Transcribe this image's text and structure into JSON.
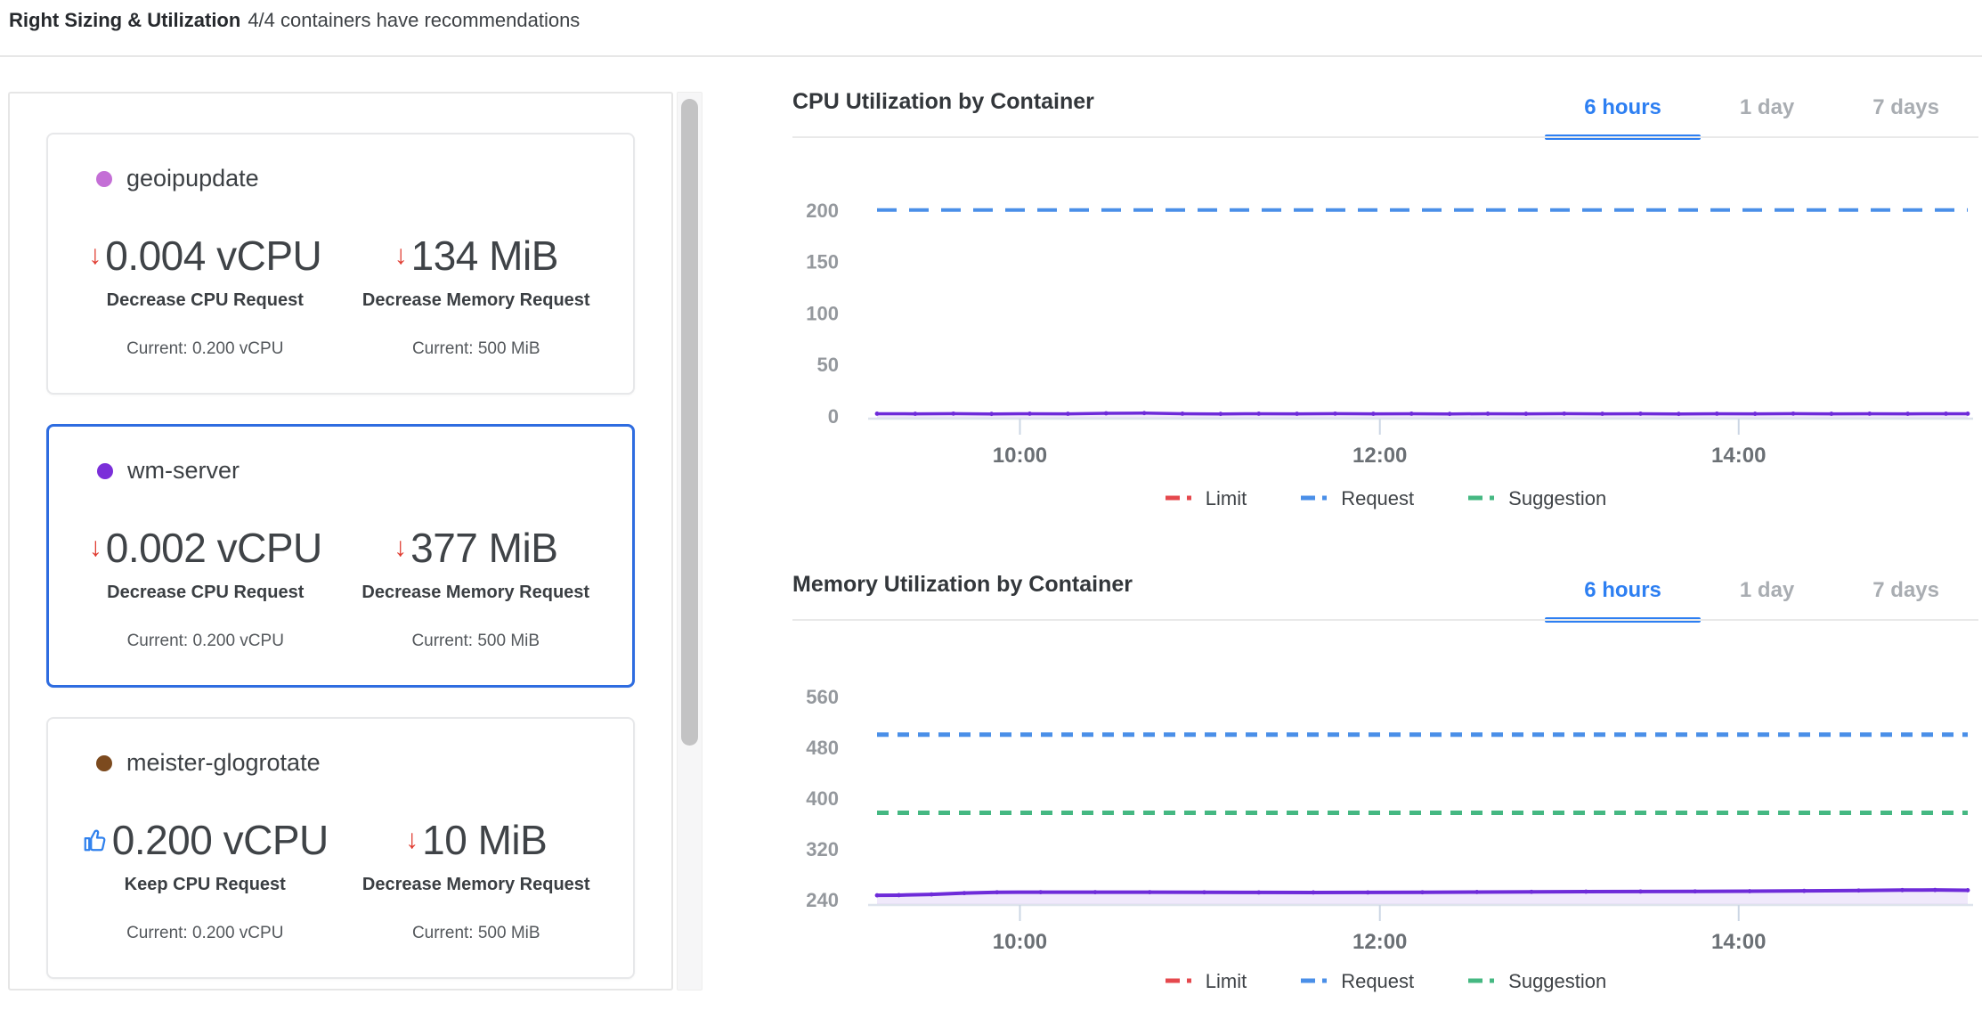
{
  "header": {
    "title": "Right Sizing & Utilization",
    "subtitle": "4/4 containers have recommendations"
  },
  "panel": {
    "containers": [
      {
        "name": "geoipupdate",
        "dot_color": "#c46fd6",
        "selected": false,
        "cpu": {
          "icon": "decrease",
          "value": "0.004 vCPU",
          "action": "Decrease CPU Request",
          "current": "Current: 0.200 vCPU"
        },
        "memory": {
          "icon": "decrease",
          "value": "134 MiB",
          "action": "Decrease Memory Request",
          "current": "Current: 500 MiB"
        }
      },
      {
        "name": "wm-server",
        "dot_color": "#7b2fd9",
        "selected": true,
        "cpu": {
          "icon": "decrease",
          "value": "0.002 vCPU",
          "action": "Decrease CPU Request",
          "current": "Current: 0.200 vCPU"
        },
        "memory": {
          "icon": "decrease",
          "value": "377 MiB",
          "action": "Decrease Memory Request",
          "current": "Current: 500 MiB"
        }
      },
      {
        "name": "meister-glogrotate",
        "dot_color": "#7c4a1e",
        "selected": false,
        "cpu": {
          "icon": "keep",
          "value": "0.200 vCPU",
          "action": "Keep CPU Request",
          "current": "Current: 0.200 vCPU"
        },
        "memory": {
          "icon": "decrease",
          "value": "10 MiB",
          "action": "Decrease Memory Request",
          "current": "Current: 500 MiB"
        }
      }
    ]
  },
  "colors": {
    "accent_blue": "#2d7ff2",
    "selected_card_border": "#2e6ce0",
    "decrease_red": "#e03c31",
    "keep_blue": "#2f80ed",
    "usage_purple": "#6e2bd9",
    "request_blue": "#4a8fe8",
    "suggestion_green": "#45b882",
    "limit_red": "#e5484d"
  },
  "chart_data": [
    {
      "id": "cpu",
      "type": "line",
      "title": "CPU Utilization by Container",
      "tabs": [
        "6 hours",
        "1 day",
        "7 days"
      ],
      "active_tab": "6 hours",
      "ymin": 0,
      "ymax": 218,
      "yticks": [
        0,
        50,
        100,
        150,
        200
      ],
      "xticks": [
        {
          "pos": 0.131,
          "label": "10:00"
        },
        {
          "pos": 0.461,
          "label": "12:00"
        },
        {
          "pos": 0.79,
          "label": "14:00"
        }
      ],
      "series": [
        {
          "name": "usage",
          "kind": "line",
          "color": "#6e2bd9",
          "markers": true,
          "area": true,
          "points": [
            [
              0,
              2.2
            ],
            [
              0.035,
              2.1
            ],
            [
              0.07,
              2.3
            ],
            [
              0.105,
              2.0
            ],
            [
              0.14,
              2.2
            ],
            [
              0.175,
              2.1
            ],
            [
              0.21,
              2.6
            ],
            [
              0.245,
              2.8
            ],
            [
              0.28,
              2.2
            ],
            [
              0.315,
              2.0
            ],
            [
              0.35,
              2.2
            ],
            [
              0.385,
              2.1
            ],
            [
              0.42,
              2.3
            ],
            [
              0.455,
              2.1
            ],
            [
              0.49,
              2.2
            ],
            [
              0.525,
              2.0
            ],
            [
              0.56,
              2.2
            ],
            [
              0.595,
              2.1
            ],
            [
              0.63,
              2.3
            ],
            [
              0.665,
              2.1
            ],
            [
              0.7,
              2.2
            ],
            [
              0.735,
              2.0
            ],
            [
              0.77,
              2.2
            ],
            [
              0.805,
              2.1
            ],
            [
              0.84,
              2.3
            ],
            [
              0.875,
              2.1
            ],
            [
              0.91,
              2.2
            ],
            [
              0.945,
              2.1
            ],
            [
              0.98,
              2.2
            ],
            [
              1,
              2.2
            ]
          ]
        },
        {
          "name": "Request",
          "kind": "hline",
          "color": "#4a8fe8",
          "value": 200,
          "dash": "22 14",
          "width": 4
        }
      ],
      "legend": [
        {
          "label": "Limit",
          "color": "#e5484d"
        },
        {
          "label": "Request",
          "color": "#4a8fe8"
        },
        {
          "label": "Suggestion",
          "color": "#45b882"
        }
      ]
    },
    {
      "id": "memory",
      "type": "line",
      "title": "Memory Utilization by Container",
      "tabs": [
        "6 hours",
        "1 day",
        "7 days"
      ],
      "active_tab": "6 hours",
      "ymin": 236,
      "ymax": 567,
      "yticks": [
        240,
        320,
        400,
        480,
        560
      ],
      "xticks": [
        {
          "pos": 0.131,
          "label": "10:00"
        },
        {
          "pos": 0.461,
          "label": "12:00"
        },
        {
          "pos": 0.79,
          "label": "14:00"
        }
      ],
      "series": [
        {
          "name": "usage",
          "kind": "line",
          "color": "#6e2bd9",
          "markers": true,
          "area": true,
          "points": [
            [
              0,
              247
            ],
            [
              0.02,
              247.3
            ],
            [
              0.05,
              248.5
            ],
            [
              0.08,
              250.5
            ],
            [
              0.11,
              251.8
            ],
            [
              0.15,
              252
            ],
            [
              0.2,
              252
            ],
            [
              0.25,
              252
            ],
            [
              0.3,
              251.8
            ],
            [
              0.35,
              251.6
            ],
            [
              0.4,
              251.5
            ],
            [
              0.45,
              251.6
            ],
            [
              0.5,
              251.8
            ],
            [
              0.55,
              252.2
            ],
            [
              0.6,
              252.5
            ],
            [
              0.65,
              252.8
            ],
            [
              0.7,
              253
            ],
            [
              0.75,
              253.2
            ],
            [
              0.8,
              253.5
            ],
            [
              0.85,
              254
            ],
            [
              0.9,
              254.6
            ],
            [
              0.94,
              255.2
            ],
            [
              0.97,
              255.4
            ],
            [
              1,
              255
            ]
          ]
        },
        {
          "name": "Request",
          "kind": "hline",
          "color": "#4a8fe8",
          "value": 500,
          "dash": "13 10",
          "width": 5
        },
        {
          "name": "Suggestion",
          "kind": "hline",
          "color": "#45b882",
          "value": 377,
          "dash": "13 10",
          "width": 5
        }
      ],
      "legend": [
        {
          "label": "Limit",
          "color": "#e5484d"
        },
        {
          "label": "Request",
          "color": "#4a8fe8"
        },
        {
          "label": "Suggestion",
          "color": "#45b882"
        }
      ]
    }
  ]
}
